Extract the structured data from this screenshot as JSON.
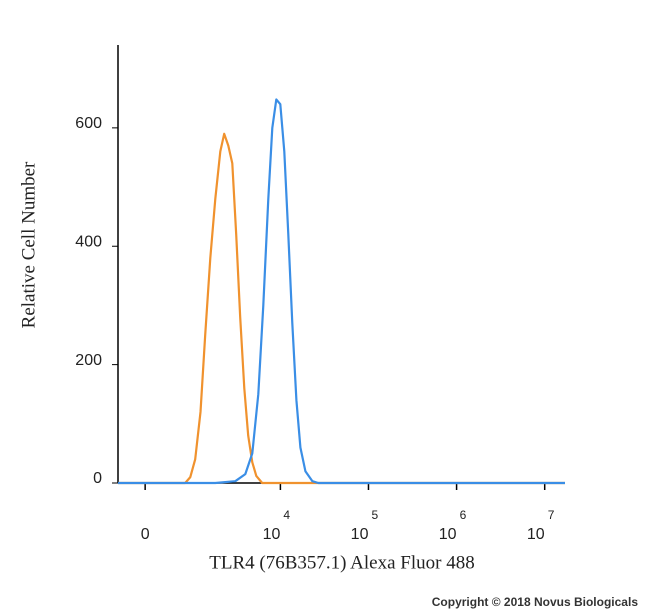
{
  "chart_data": {
    "type": "line",
    "xlabel": "TLR4 (76B357.1) Alexa Fluor 488",
    "ylabel": "Relative Cell Number",
    "annotation": "Copyright © 2018 Novus Biologicals",
    "xscale": "biexponential",
    "xlim": [
      -450,
      17000000
    ],
    "ylim": [
      0,
      740
    ],
    "xticks": [
      {
        "value": 0,
        "label": "0"
      },
      {
        "value": 10000,
        "label": "10",
        "sup": "4"
      },
      {
        "value": 100000,
        "label": "10",
        "sup": "5"
      },
      {
        "value": 1000000,
        "label": "10",
        "sup": "6"
      },
      {
        "value": 10000000,
        "label": "10",
        "sup": "7"
      }
    ],
    "yticks": [
      0,
      200,
      400,
      600
    ],
    "series": [
      {
        "color": "#f0922e",
        "x": [
          -450,
          730,
          860,
          1000,
          1170,
          1340,
          1550,
          1780,
          2040,
          2270,
          2530,
          2820,
          3130,
          3480,
          3870,
          4300,
          4780,
          5310,
          6210,
          17000000
        ],
        "values": [
          0,
          0,
          10,
          40,
          120,
          250,
          380,
          480,
          560,
          590,
          570,
          540,
          420,
          280,
          160,
          80,
          35,
          12,
          0,
          0
        ]
      },
      {
        "color": "#3a8ee6",
        "x": [
          -450,
          1780,
          3050,
          3980,
          4780,
          5600,
          6390,
          7280,
          8090,
          8980,
          9980,
          11080,
          12310,
          13670,
          15180,
          16860,
          19210,
          23070,
          26980,
          17000000
        ],
        "values": [
          0,
          0,
          3,
          15,
          50,
          150,
          300,
          480,
          600,
          648,
          640,
          560,
          420,
          270,
          140,
          60,
          20,
          3,
          0,
          0
        ]
      }
    ]
  }
}
